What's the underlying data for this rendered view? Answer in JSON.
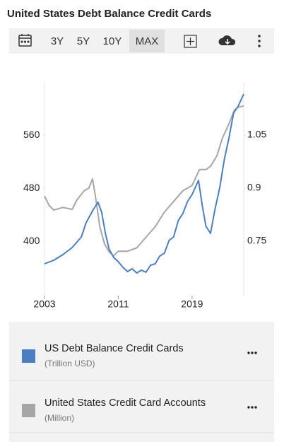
{
  "header": {
    "title": "United States Debt Balance Credit Cards"
  },
  "toolbar": {
    "ranges": [
      "3Y",
      "5Y",
      "10Y",
      "MAX"
    ]
  },
  "chart_data": {
    "type": "line",
    "xlim": [
      2003,
      2024.6
    ],
    "xticks": [
      2003,
      2011,
      2019
    ],
    "ylim": [
      318,
      639
    ],
    "yticks": [
      400,
      480,
      560
    ],
    "y2lim": [
      0.596,
      1.198
    ],
    "y2ticks": [
      0.75,
      0.9,
      1.05
    ],
    "series": [
      {
        "name": "US Debt Balance Credit Cards",
        "unit": "(Trillion USD)",
        "color": "#4a7fc1",
        "axis": "y2",
        "x": [
          2003,
          2004,
          2005,
          2006,
          2007,
          2007.5,
          2008.3,
          2008.8,
          2009.2,
          2009.6,
          2010,
          2010.5,
          2011,
          2011.5,
          2012,
          2012.5,
          2013,
          2013.5,
          2014,
          2014.5,
          2015,
          2015.5,
          2016,
          2016.5,
          2017,
          2017.5,
          2018,
          2018.5,
          2019,
          2019.7,
          2020.1,
          2020.5,
          2021,
          2021.5,
          2022,
          2022.5,
          2023,
          2023.5,
          2024,
          2024.6
        ],
        "values": [
          0.686,
          0.696,
          0.712,
          0.732,
          0.762,
          0.802,
          0.84,
          0.86,
          0.832,
          0.772,
          0.728,
          0.704,
          0.692,
          0.676,
          0.664,
          0.672,
          0.66,
          0.668,
          0.662,
          0.682,
          0.686,
          0.708,
          0.716,
          0.752,
          0.762,
          0.808,
          0.828,
          0.862,
          0.882,
          0.922,
          0.852,
          0.792,
          0.772,
          0.842,
          0.902,
          0.982,
          1.042,
          1.112,
          1.132,
          1.166
        ]
      },
      {
        "name": "United States Credit Card Accounts",
        "unit": "(Million)",
        "color": "#a6a6a6",
        "x": [
          2003,
          2003.5,
          2004,
          2005,
          2006,
          2006.5,
          2007.3,
          2007.8,
          2008.2,
          2008.5,
          2009,
          2009.5,
          2010,
          2010.5,
          2011,
          2012,
          2013,
          2014,
          2015,
          2016,
          2017,
          2018,
          2019,
          2019.8,
          2020.5,
          2021,
          2021.7,
          2022.3,
          2023,
          2023.6,
          2024,
          2024.6
        ],
        "values": [
          468,
          454,
          447,
          451,
          448,
          462,
          476,
          480,
          494,
          470,
          422,
          396,
          384,
          378,
          385,
          385,
          390,
          406,
          422,
          444,
          460,
          476,
          484,
          508,
          508,
          513,
          529,
          556,
          577,
          598,
          602,
          604
        ]
      }
    ]
  }
}
